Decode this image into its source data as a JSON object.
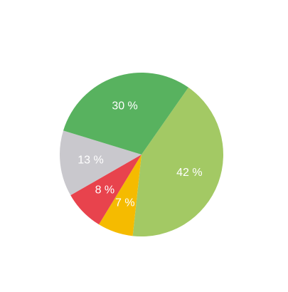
{
  "chart_data": {
    "type": "pie",
    "title": "",
    "slices": [
      {
        "label": "42 %",
        "value": 42,
        "color": "#a3c964"
      },
      {
        "label": "7 %",
        "value": 7,
        "color": "#f5bb00"
      },
      {
        "label": "8 %",
        "value": 8,
        "color": "#e8434d"
      },
      {
        "label": "13 %",
        "value": 13,
        "color": "#c9c8cd"
      },
      {
        "label": "30 %",
        "value": 30,
        "color": "#58b25f"
      }
    ],
    "start_angle_deg": -55,
    "direction": "clockwise",
    "legend": "none"
  }
}
